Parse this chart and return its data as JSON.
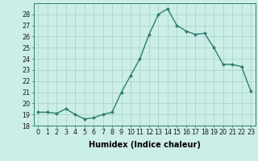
{
  "x": [
    0,
    1,
    2,
    3,
    4,
    5,
    6,
    7,
    8,
    9,
    10,
    11,
    12,
    13,
    14,
    15,
    16,
    17,
    18,
    19,
    20,
    21,
    22,
    23
  ],
  "y": [
    19.2,
    19.2,
    19.1,
    19.5,
    19.0,
    18.6,
    18.7,
    19.0,
    19.2,
    21.0,
    22.5,
    24.0,
    26.2,
    28.0,
    28.5,
    27.0,
    26.5,
    26.2,
    26.3,
    25.0,
    23.5,
    23.5,
    23.3,
    21.1
  ],
  "line_color": "#2e7d6e",
  "marker": "D",
  "marker_size": 2.0,
  "background_color": "#cceee8",
  "grid_color": "#aad4cc",
  "xlabel": "Humidex (Indice chaleur)",
  "ylim": [
    18,
    29
  ],
  "xlim": [
    -0.5,
    23.5
  ],
  "yticks": [
    18,
    19,
    20,
    21,
    22,
    23,
    24,
    25,
    26,
    27,
    28
  ],
  "xticks": [
    0,
    1,
    2,
    3,
    4,
    5,
    6,
    7,
    8,
    9,
    10,
    11,
    12,
    13,
    14,
    15,
    16,
    17,
    18,
    19,
    20,
    21,
    22,
    23
  ],
  "tick_fontsize": 5.8,
  "xlabel_fontsize": 7.0,
  "line_width": 1.0
}
